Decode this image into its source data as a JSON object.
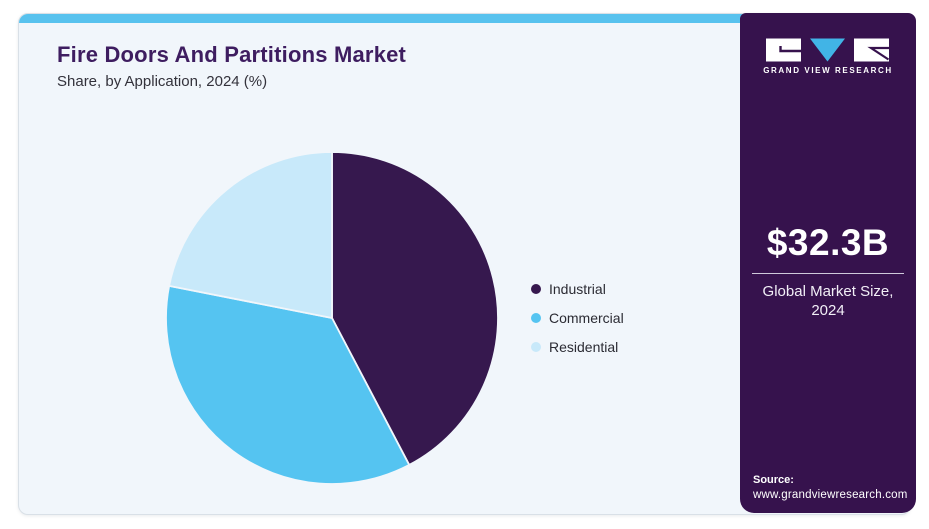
{
  "header": {
    "title": "Fire Doors And Partitions Market",
    "subtitle": "Share, by Application, 2024 (%)"
  },
  "chart_data": {
    "type": "pie",
    "title": "Fire Doors And Partitions Market",
    "subtitle": "Share, by Application, 2024 (%)",
    "categories": [
      "Industrial",
      "Commercial",
      "Residential"
    ],
    "values": [
      42.3,
      35.8,
      21.9
    ],
    "unit": "%",
    "colors": [
      "#36184E",
      "#55C4F1",
      "#C8E9FA"
    ],
    "start_angle_deg": 0,
    "direction": "clockwise",
    "legend_position": "right",
    "data_labels_shown": false
  },
  "legend": {
    "items": [
      {
        "label": "Industrial",
        "color": "#36184E"
      },
      {
        "label": "Commercial",
        "color": "#55C4F1"
      },
      {
        "label": "Residential",
        "color": "#C8E9FA"
      }
    ]
  },
  "sidebar": {
    "logo": {
      "brand": "GRAND VIEW RESEARCH"
    },
    "stat": {
      "value": "$32.3B",
      "label_line1": "Global Market Size,",
      "label_line2": "2024"
    },
    "source": {
      "label": "Source:",
      "url": "www.grandviewresearch.com"
    }
  },
  "colors": {
    "accent_bar": "#58C2EE",
    "card_bg": "#F1F6FB",
    "card_border": "#D9E0E7",
    "title": "#3E1D60",
    "text": "#33323B",
    "sidebar_bg": "#36124D",
    "sidebar_divider": "#CFC9DB",
    "logo_triangle": "#41B4E6"
  }
}
